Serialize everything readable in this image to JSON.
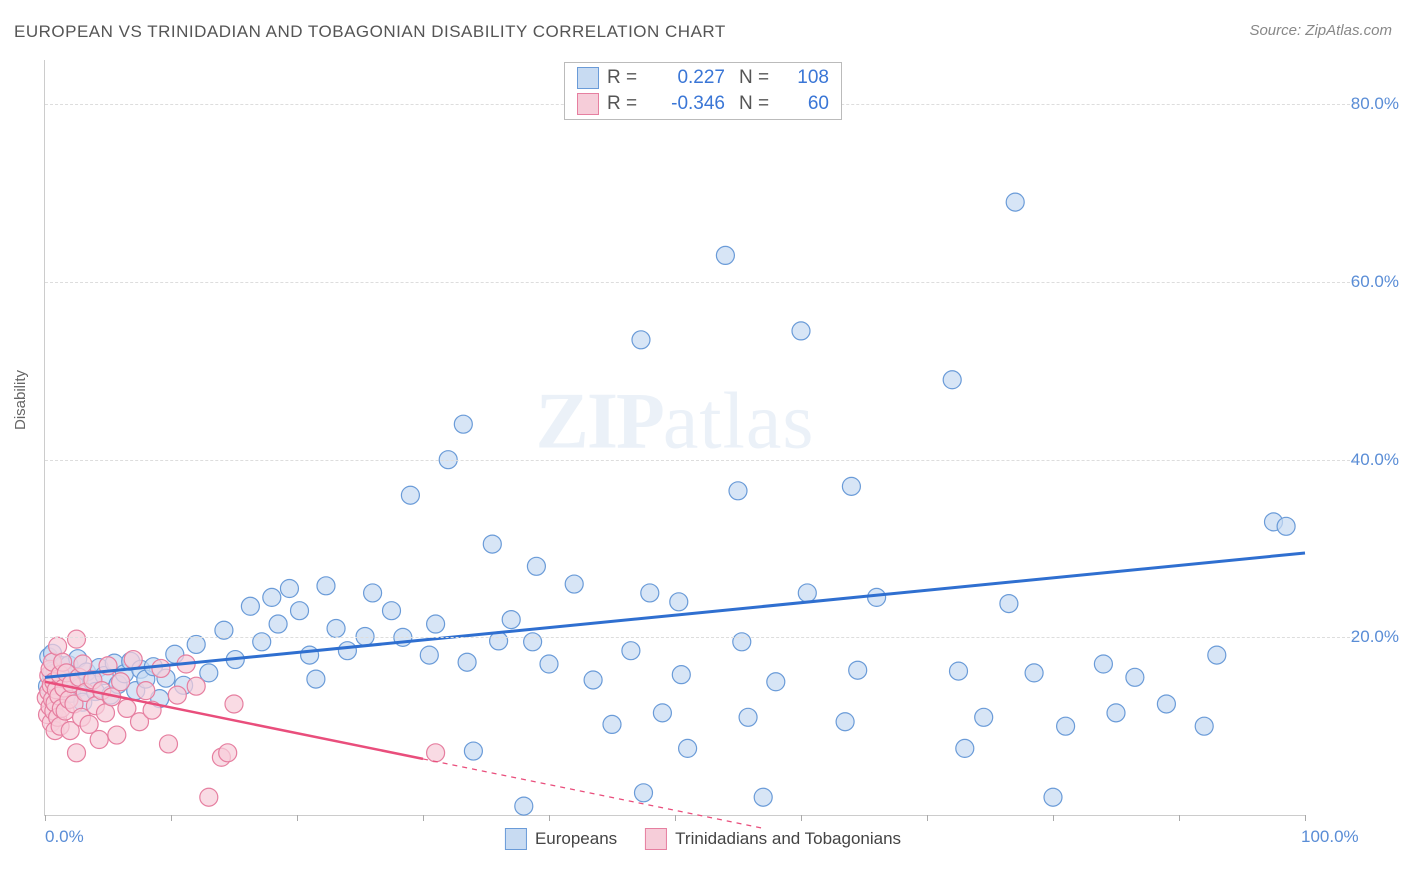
{
  "title": "EUROPEAN VS TRINIDADIAN AND TOBAGONIAN DISABILITY CORRELATION CHART",
  "source_label": "Source: ZipAtlas.com",
  "watermark_zip": "ZIP",
  "watermark_atlas": "atlas",
  "ylabel": "Disability",
  "chart": {
    "type": "scatter",
    "xlim": [
      0,
      100
    ],
    "ylim": [
      0,
      85
    ],
    "yticks": [
      20,
      40,
      60,
      80
    ],
    "ytick_labels": [
      "20.0%",
      "40.0%",
      "60.0%",
      "80.0%"
    ],
    "xtick_marks": [
      0,
      10,
      20,
      30,
      40,
      50,
      60,
      70,
      80,
      90,
      100
    ],
    "xtick_labels_visible": {
      "0": "0.0%",
      "100": "100.0%"
    },
    "background_color": "#ffffff",
    "grid_color": "#dddddd",
    "axis_color": "#cccccc",
    "marker_radius": 9,
    "marker_stroke_width": 1.2,
    "series": [
      {
        "name": "Europeans",
        "marker_fill": "#c8dbf2",
        "marker_stroke": "#6a9bd8",
        "trend_color": "#2f6fd0",
        "trend_width": 3,
        "trend_solid_until_x": 100,
        "r_value": "0.227",
        "n_value": "108",
        "trend": {
          "x1": 0,
          "y1": 15.5,
          "x2": 100,
          "y2": 29.5
        },
        "points": [
          [
            0.2,
            14.5
          ],
          [
            0.3,
            17.8
          ],
          [
            0.5,
            15.8
          ],
          [
            0.6,
            16.2
          ],
          [
            0.6,
            18.2
          ],
          [
            0.7,
            13.2
          ],
          [
            0.8,
            16.0
          ],
          [
            1.0,
            13.8
          ],
          [
            1.2,
            14.2
          ],
          [
            1.4,
            16.8
          ],
          [
            1.7,
            15.6
          ],
          [
            1.9,
            16.9
          ],
          [
            2.1,
            13.7
          ],
          [
            2.4,
            15.2
          ],
          [
            2.6,
            17.6
          ],
          [
            2.8,
            14.4
          ],
          [
            3.0,
            12.7
          ],
          [
            3.3,
            16.1
          ],
          [
            3.7,
            15.1
          ],
          [
            4.0,
            13.9
          ],
          [
            4.3,
            16.6
          ],
          [
            4.7,
            15.7
          ],
          [
            5.2,
            13.5
          ],
          [
            5.5,
            17.1
          ],
          [
            5.8,
            14.7
          ],
          [
            6.3,
            15.9
          ],
          [
            6.8,
            17.3
          ],
          [
            7.2,
            14.0
          ],
          [
            7.6,
            16.4
          ],
          [
            8.0,
            15.3
          ],
          [
            8.6,
            16.7
          ],
          [
            9.1,
            13.1
          ],
          [
            9.6,
            15.4
          ],
          [
            10.3,
            18.1
          ],
          [
            11.0,
            14.6
          ],
          [
            12.0,
            19.2
          ],
          [
            13.0,
            16.0
          ],
          [
            14.2,
            20.8
          ],
          [
            15.1,
            17.5
          ],
          [
            16.3,
            23.5
          ],
          [
            17.2,
            19.5
          ],
          [
            18.0,
            24.5
          ],
          [
            18.5,
            21.5
          ],
          [
            19.4,
            25.5
          ],
          [
            20.2,
            23.0
          ],
          [
            21.0,
            18.0
          ],
          [
            22.3,
            25.8
          ],
          [
            23.1,
            21.0
          ],
          [
            24.0,
            18.5
          ],
          [
            25.4,
            20.1
          ],
          [
            26.0,
            25.0
          ],
          [
            27.5,
            23.0
          ],
          [
            28.4,
            20.0
          ],
          [
            29.0,
            36.0
          ],
          [
            30.5,
            18.0
          ],
          [
            31.0,
            21.5
          ],
          [
            32.0,
            40.0
          ],
          [
            33.2,
            44.0
          ],
          [
            33.5,
            17.2
          ],
          [
            34.0,
            7.2
          ],
          [
            35.5,
            30.5
          ],
          [
            36.0,
            19.6
          ],
          [
            37.0,
            22.0
          ],
          [
            38.0,
            1.0
          ],
          [
            38.7,
            19.5
          ],
          [
            39.0,
            28.0
          ],
          [
            40.0,
            17.0
          ],
          [
            42.0,
            26.0
          ],
          [
            43.5,
            15.2
          ],
          [
            45.0,
            10.2
          ],
          [
            46.5,
            18.5
          ],
          [
            47.3,
            53.5
          ],
          [
            47.5,
            2.5
          ],
          [
            48.0,
            25.0
          ],
          [
            49.0,
            11.5
          ],
          [
            50.3,
            24.0
          ],
          [
            50.5,
            15.8
          ],
          [
            51.0,
            7.5
          ],
          [
            54.0,
            63.0
          ],
          [
            55.0,
            36.5
          ],
          [
            55.3,
            19.5
          ],
          [
            55.8,
            11.0
          ],
          [
            57.0,
            2.0
          ],
          [
            58.0,
            15.0
          ],
          [
            60.0,
            54.5
          ],
          [
            63.5,
            10.5
          ],
          [
            64.0,
            37.0
          ],
          [
            64.5,
            16.3
          ],
          [
            66.0,
            24.5
          ],
          [
            72.0,
            49.0
          ],
          [
            72.5,
            16.2
          ],
          [
            74.5,
            11.0
          ],
          [
            76.5,
            23.8
          ],
          [
            77.0,
            69.0
          ],
          [
            78.5,
            16.0
          ],
          [
            80.0,
            2.0
          ],
          [
            81.0,
            10.0
          ],
          [
            84.0,
            17.0
          ],
          [
            85.0,
            11.5
          ],
          [
            86.5,
            15.5
          ],
          [
            89.0,
            12.5
          ],
          [
            92.0,
            10.0
          ],
          [
            97.5,
            33.0
          ],
          [
            98.5,
            32.5
          ],
          [
            93.0,
            18.0
          ],
          [
            73.0,
            7.5
          ],
          [
            60.5,
            25.0
          ],
          [
            21.5,
            15.3
          ]
        ]
      },
      {
        "name": "Trinidadians and Tobagonians",
        "marker_fill": "#f6cdd9",
        "marker_stroke": "#e67fa0",
        "trend_color": "#e94e7c",
        "trend_width": 2.5,
        "trend_solid_until_x": 30,
        "r_value": "-0.346",
        "n_value": "60",
        "trend": {
          "x1": 0,
          "y1": 15.0,
          "x2": 57,
          "y2": -1.5
        },
        "points": [
          [
            0.1,
            13.2
          ],
          [
            0.2,
            11.3
          ],
          [
            0.3,
            15.7
          ],
          [
            0.3,
            13.9
          ],
          [
            0.4,
            12.2
          ],
          [
            0.4,
            16.4
          ],
          [
            0.5,
            10.4
          ],
          [
            0.5,
            14.6
          ],
          [
            0.6,
            13.0
          ],
          [
            0.6,
            17.2
          ],
          [
            0.7,
            11.7
          ],
          [
            0.7,
            15.0
          ],
          [
            0.8,
            12.6
          ],
          [
            0.8,
            9.5
          ],
          [
            0.9,
            14.1
          ],
          [
            1.0,
            19.0
          ],
          [
            1.0,
            11.0
          ],
          [
            1.1,
            13.4
          ],
          [
            1.2,
            15.8
          ],
          [
            1.2,
            10.0
          ],
          [
            1.3,
            12.0
          ],
          [
            1.4,
            17.2
          ],
          [
            1.5,
            14.3
          ],
          [
            1.6,
            11.7
          ],
          [
            1.7,
            16.0
          ],
          [
            1.9,
            13.0
          ],
          [
            2.0,
            9.5
          ],
          [
            2.1,
            14.8
          ],
          [
            2.3,
            12.5
          ],
          [
            2.5,
            19.8
          ],
          [
            2.5,
            7.0
          ],
          [
            2.7,
            15.5
          ],
          [
            2.9,
            11.0
          ],
          [
            3.0,
            17.0
          ],
          [
            3.2,
            13.8
          ],
          [
            3.5,
            10.2
          ],
          [
            3.8,
            15.2
          ],
          [
            4.0,
            12.3
          ],
          [
            4.3,
            8.5
          ],
          [
            4.5,
            14.0
          ],
          [
            4.8,
            11.5
          ],
          [
            5.0,
            16.8
          ],
          [
            5.3,
            13.3
          ],
          [
            5.7,
            9.0
          ],
          [
            6.0,
            15.0
          ],
          [
            6.5,
            12.0
          ],
          [
            7.0,
            17.5
          ],
          [
            7.5,
            10.5
          ],
          [
            8.0,
            14.0
          ],
          [
            8.5,
            11.8
          ],
          [
            9.2,
            16.5
          ],
          [
            9.8,
            8.0
          ],
          [
            10.5,
            13.5
          ],
          [
            11.2,
            17.0
          ],
          [
            12.0,
            14.5
          ],
          [
            13.0,
            2.0
          ],
          [
            14.0,
            6.5
          ],
          [
            14.5,
            7.0
          ],
          [
            15.0,
            12.5
          ],
          [
            31.0,
            7.0
          ]
        ]
      }
    ]
  },
  "legend_top": {
    "r_char": "R",
    "eq_char": "=",
    "n_char": "N"
  },
  "legend_bottom": [
    {
      "swatch_fill": "#c8dbf2",
      "swatch_stroke": "#6a9bd8",
      "label": "Europeans"
    },
    {
      "swatch_fill": "#f6cdd9",
      "swatch_stroke": "#e67fa0",
      "label": "Trinidadians and Tobagonians"
    }
  ],
  "colors": {
    "title_color": "#555555",
    "tick_label_color": "#5a8dd6"
  }
}
